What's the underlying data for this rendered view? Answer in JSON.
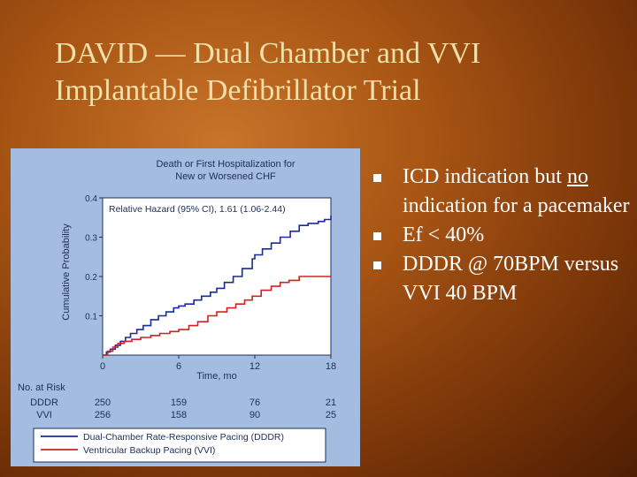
{
  "slide": {
    "title_line1": "DAVID — Dual Chamber and VVI",
    "title_line2": "Implantable Defibrillator Trial",
    "title_color": "#f3dfa8"
  },
  "bullets": [
    {
      "pre": "ICD indication but ",
      "underlined": "no",
      "post": " indication for a pacemaker"
    },
    {
      "pre": "Ef < 40%",
      "underlined": "",
      "post": ""
    },
    {
      "pre": "DDDR @ 70BPM versus VVI 40 BPM",
      "underlined": "",
      "post": ""
    }
  ],
  "chart_data": {
    "type": "line",
    "title_lines": [
      "Death or First Hospitalization for",
      "New or Worsened CHF"
    ],
    "annotation": "Relative Hazard (95% CI), 1.61 (1.06-2.44)",
    "xlabel": "Time, mo",
    "ylabel": "Cumulative Probability",
    "xlim": [
      0,
      18
    ],
    "ylim": [
      0,
      0.4
    ],
    "x_ticks": [
      0,
      6,
      12,
      18
    ],
    "x_tick_labels": [
      "0",
      "6",
      "12",
      "18"
    ],
    "y_ticks": [
      0.1,
      0.2,
      0.3,
      0.4
    ],
    "y_tick_labels": [
      "0.1",
      "0.2",
      "0.3",
      "0.4"
    ],
    "grid": false,
    "series": [
      {
        "name": "Dual-Chamber Rate-Responsive Pacing (DDDR)",
        "color": "#1a2a9c",
        "x": [
          0,
          0.3,
          0.6,
          1.0,
          1.4,
          1.8,
          2.2,
          2.7,
          3.2,
          3.8,
          4.4,
          5.0,
          5.6,
          6.0,
          6.5,
          7.2,
          7.8,
          8.5,
          9.0,
          9.6,
          10.3,
          11.0,
          11.8,
          12.0,
          12.6,
          13.3,
          14.0,
          14.8,
          15.5,
          16.2,
          17.0,
          17.5,
          18.0
        ],
        "y": [
          0,
          0.008,
          0.015,
          0.025,
          0.035,
          0.045,
          0.055,
          0.065,
          0.075,
          0.09,
          0.1,
          0.11,
          0.12,
          0.125,
          0.13,
          0.14,
          0.15,
          0.16,
          0.17,
          0.185,
          0.2,
          0.22,
          0.245,
          0.255,
          0.27,
          0.285,
          0.3,
          0.315,
          0.33,
          0.335,
          0.34,
          0.345,
          0.355
        ]
      },
      {
        "name": "Ventricular Backup Pacing (VVI)",
        "color": "#d52020",
        "x": [
          0,
          0.4,
          0.8,
          1.2,
          1.7,
          2.3,
          3.0,
          3.8,
          4.5,
          5.3,
          6.0,
          6.8,
          7.5,
          8.3,
          9.0,
          9.8,
          10.5,
          11.2,
          11.8,
          12.5,
          13.3,
          14.0,
          14.7,
          15.5,
          18.0
        ],
        "y": [
          0,
          0.01,
          0.02,
          0.03,
          0.035,
          0.04,
          0.045,
          0.05,
          0.055,
          0.06,
          0.065,
          0.075,
          0.085,
          0.1,
          0.11,
          0.12,
          0.13,
          0.14,
          0.15,
          0.165,
          0.175,
          0.185,
          0.19,
          0.2,
          0.2
        ]
      }
    ],
    "at_risk": {
      "header": "No. at Risk",
      "rows": [
        {
          "label": "DDDR",
          "values": [
            "250",
            "159",
            "76",
            "21"
          ]
        },
        {
          "label": "VVI",
          "values": [
            "256",
            "158",
            "90",
            "25"
          ]
        }
      ]
    },
    "legend": [
      {
        "label": "Dual-Chamber Rate-Responsive Pacing (DDDR)",
        "color": "#1a2a9c"
      },
      {
        "label": "Ventricular Backup Pacing (VVI)",
        "color": "#d52020"
      }
    ],
    "legend_position": "bottom"
  }
}
